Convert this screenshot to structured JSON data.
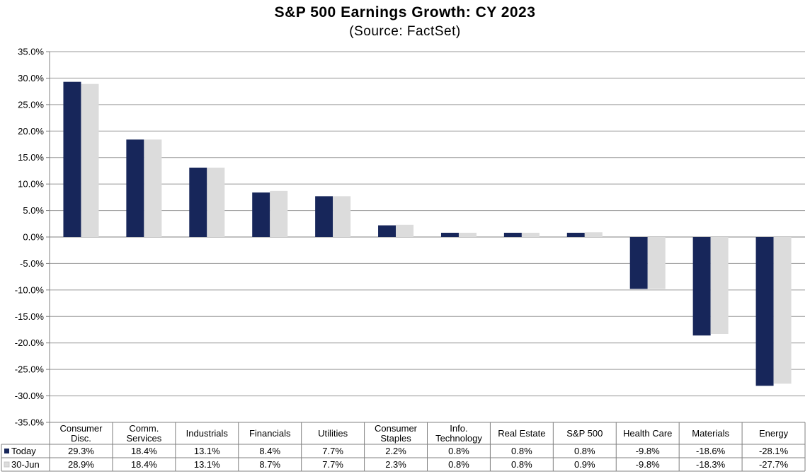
{
  "chart_data": {
    "type": "bar",
    "title": "S&P 500 Earnings Growth: CY 2023",
    "subtitle": "(Source: FactSet)",
    "categories": [
      [
        "Consumer",
        "Disc."
      ],
      [
        "Comm.",
        "Services"
      ],
      [
        "Industrials"
      ],
      [
        "Financials"
      ],
      [
        "Utilities"
      ],
      [
        "Consumer",
        "Staples"
      ],
      [
        "Info.",
        "Technology"
      ],
      [
        "Real Estate"
      ],
      [
        "S&P 500"
      ],
      [
        "Health Care"
      ],
      [
        "Materials"
      ],
      [
        "Energy"
      ]
    ],
    "series": [
      {
        "name": "Today",
        "color": "#17265a",
        "values": [
          29.3,
          18.4,
          13.1,
          8.4,
          7.7,
          2.2,
          0.8,
          0.8,
          0.8,
          -9.8,
          -18.6,
          -28.1
        ],
        "labels": [
          "29.3%",
          "18.4%",
          "13.1%",
          "8.4%",
          "7.7%",
          "2.2%",
          "0.8%",
          "0.8%",
          "0.8%",
          "-9.8%",
          "-18.6%",
          "-28.1%"
        ]
      },
      {
        "name": "30-Jun",
        "color": "#dcdcdc",
        "values": [
          28.9,
          18.4,
          13.1,
          8.7,
          7.7,
          2.3,
          0.8,
          0.8,
          0.9,
          -9.8,
          -18.3,
          -27.7
        ],
        "labels": [
          "28.9%",
          "18.4%",
          "13.1%",
          "8.7%",
          "7.7%",
          "2.3%",
          "0.8%",
          "0.8%",
          "0.9%",
          "-9.8%",
          "-18.3%",
          "-27.7%"
        ]
      }
    ],
    "ylim": [
      -35,
      35
    ],
    "yticks": [
      35,
      30,
      25,
      20,
      15,
      10,
      5,
      0,
      -5,
      -10,
      -15,
      -20,
      -25,
      -30,
      -35
    ],
    "ytick_labels": [
      "35.0%",
      "30.0%",
      "25.0%",
      "20.0%",
      "15.0%",
      "10.0%",
      "5.0%",
      "0.0%",
      "-5.0%",
      "-10.0%",
      "-15.0%",
      "-20.0%",
      "-25.0%",
      "-30.0%",
      "-35.0%"
    ],
    "grid": true,
    "legend": "data-table"
  }
}
